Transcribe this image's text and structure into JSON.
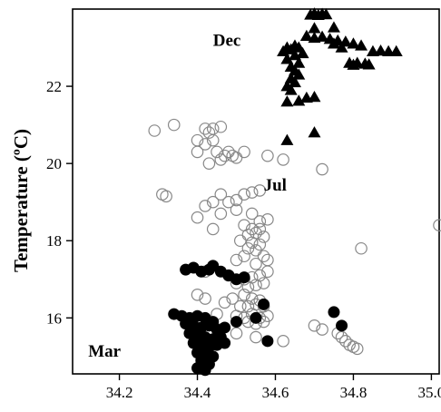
{
  "chart_data": {
    "type": "scatter",
    "title": "",
    "xlabel": "",
    "ylabel": "Temperature (ºC)",
    "xlim": [
      34.08,
      35.02
    ],
    "ylim": [
      14.55,
      24.0
    ],
    "xticks": [
      "34.2",
      "34.4",
      "34.6",
      "34.8",
      "35.0"
    ],
    "xtick_values": [
      34.2,
      34.4,
      34.6,
      34.8,
      35.0
    ],
    "yticks": [
      "16",
      "18",
      "20",
      "22"
    ],
    "ytick_values": [
      16,
      18,
      20,
      22
    ],
    "grid": false,
    "legend": "none",
    "annotations": [
      {
        "text": "Dec",
        "x": 34.44,
        "y": 23.05
      },
      {
        "text": "Jul",
        "x": 34.57,
        "y": 19.3
      },
      {
        "text": "Mar",
        "x": 34.12,
        "y": 15.0
      }
    ],
    "series": [
      {
        "marker": "triangle",
        "color": "#000000",
        "points": [
          [
            34.69,
            23.85
          ],
          [
            34.7,
            23.88
          ],
          [
            34.72,
            23.87
          ],
          [
            34.73,
            23.86
          ],
          [
            34.71,
            23.84
          ],
          [
            34.7,
            23.5
          ],
          [
            34.75,
            23.52
          ],
          [
            34.68,
            23.3
          ],
          [
            34.7,
            23.25
          ],
          [
            34.72,
            23.28
          ],
          [
            34.74,
            23.22
          ],
          [
            34.76,
            23.18
          ],
          [
            34.78,
            23.15
          ],
          [
            34.8,
            23.1
          ],
          [
            34.82,
            23.05
          ],
          [
            34.75,
            23.1
          ],
          [
            34.77,
            23.0
          ],
          [
            34.63,
            23.0
          ],
          [
            34.65,
            23.05
          ],
          [
            34.66,
            23.0
          ],
          [
            34.64,
            22.95
          ],
          [
            34.62,
            22.9
          ],
          [
            34.67,
            22.85
          ],
          [
            34.65,
            22.8
          ],
          [
            34.63,
            22.7
          ],
          [
            34.66,
            22.6
          ],
          [
            34.64,
            22.5
          ],
          [
            34.65,
            22.4
          ],
          [
            34.66,
            22.3
          ],
          [
            34.64,
            22.2
          ],
          [
            34.65,
            22.1
          ],
          [
            34.63,
            22.0
          ],
          [
            34.64,
            21.9
          ],
          [
            34.85,
            22.9
          ],
          [
            34.87,
            22.92
          ],
          [
            34.89,
            22.9
          ],
          [
            34.91,
            22.9
          ],
          [
            34.79,
            22.6
          ],
          [
            34.81,
            22.6
          ],
          [
            34.83,
            22.58
          ],
          [
            34.84,
            22.56
          ],
          [
            34.8,
            22.55
          ],
          [
            34.63,
            21.6
          ],
          [
            34.66,
            21.62
          ],
          [
            34.68,
            21.7
          ],
          [
            34.7,
            21.72
          ],
          [
            34.63,
            20.6
          ],
          [
            34.7,
            20.8
          ]
        ]
      },
      {
        "marker": "open-circle",
        "color": "#888888",
        "points": [
          [
            34.29,
            20.85
          ],
          [
            34.34,
            21.0
          ],
          [
            34.42,
            20.9
          ],
          [
            34.44,
            20.9
          ],
          [
            34.46,
            20.95
          ],
          [
            34.43,
            20.8
          ],
          [
            34.4,
            20.6
          ],
          [
            34.42,
            20.5
          ],
          [
            34.44,
            20.6
          ],
          [
            34.4,
            20.3
          ],
          [
            34.45,
            20.3
          ],
          [
            34.47,
            20.2
          ],
          [
            34.48,
            20.3
          ],
          [
            34.49,
            20.2
          ],
          [
            34.5,
            20.15
          ],
          [
            34.46,
            20.1
          ],
          [
            34.43,
            20.0
          ],
          [
            34.52,
            20.3
          ],
          [
            34.58,
            20.2
          ],
          [
            34.62,
            20.1
          ],
          [
            34.72,
            19.85
          ],
          [
            34.31,
            19.2
          ],
          [
            34.32,
            19.15
          ],
          [
            34.46,
            19.2
          ],
          [
            34.48,
            19.0
          ],
          [
            34.5,
            19.05
          ],
          [
            34.52,
            19.2
          ],
          [
            34.54,
            19.25
          ],
          [
            34.56,
            19.3
          ],
          [
            34.42,
            18.9
          ],
          [
            34.44,
            19.0
          ],
          [
            34.4,
            18.6
          ],
          [
            34.46,
            18.7
          ],
          [
            34.5,
            18.8
          ],
          [
            34.54,
            18.7
          ],
          [
            34.56,
            18.5
          ],
          [
            34.58,
            18.55
          ],
          [
            34.44,
            18.3
          ],
          [
            34.52,
            18.4
          ],
          [
            34.54,
            18.3
          ],
          [
            34.56,
            18.3
          ],
          [
            34.53,
            18.15
          ],
          [
            34.55,
            18.2
          ],
          [
            34.57,
            18.1
          ],
          [
            34.51,
            18.0
          ],
          [
            34.54,
            17.95
          ],
          [
            34.56,
            17.9
          ],
          [
            34.53,
            17.8
          ],
          [
            34.55,
            17.75
          ],
          [
            34.52,
            17.6
          ],
          [
            34.57,
            17.6
          ],
          [
            34.5,
            17.5
          ],
          [
            34.55,
            17.4
          ],
          [
            34.58,
            17.5
          ],
          [
            34.42,
            17.2
          ],
          [
            34.48,
            17.1
          ],
          [
            34.52,
            17.0
          ],
          [
            34.54,
            17.05
          ],
          [
            34.56,
            17.1
          ],
          [
            34.58,
            17.2
          ],
          [
            34.5,
            16.9
          ],
          [
            34.53,
            16.8
          ],
          [
            34.55,
            16.85
          ],
          [
            34.57,
            16.9
          ],
          [
            34.52,
            16.6
          ],
          [
            34.54,
            16.5
          ],
          [
            34.56,
            16.45
          ],
          [
            34.4,
            16.6
          ],
          [
            34.42,
            16.5
          ],
          [
            34.47,
            16.4
          ],
          [
            34.49,
            16.5
          ],
          [
            34.51,
            16.3
          ],
          [
            34.53,
            16.3
          ],
          [
            34.55,
            16.35
          ],
          [
            34.57,
            16.3
          ],
          [
            34.45,
            16.1
          ],
          [
            34.5,
            16.05
          ],
          [
            34.52,
            16.0
          ],
          [
            34.54,
            16.1
          ],
          [
            34.56,
            16.0
          ],
          [
            34.58,
            16.05
          ],
          [
            34.53,
            15.9
          ],
          [
            34.55,
            15.85
          ],
          [
            34.57,
            15.9
          ],
          [
            34.46,
            15.7
          ],
          [
            34.5,
            15.6
          ],
          [
            34.55,
            15.5
          ],
          [
            34.62,
            15.4
          ],
          [
            34.7,
            15.8
          ],
          [
            34.72,
            15.7
          ],
          [
            34.76,
            15.6
          ],
          [
            34.77,
            15.5
          ],
          [
            34.78,
            15.4
          ],
          [
            34.79,
            15.3
          ],
          [
            34.8,
            15.25
          ],
          [
            34.81,
            15.2
          ],
          [
            34.82,
            17.8
          ],
          [
            35.02,
            18.4
          ]
        ]
      },
      {
        "marker": "filled-circle",
        "color": "#000000",
        "points": [
          [
            34.37,
            17.25
          ],
          [
            34.39,
            17.3
          ],
          [
            34.41,
            17.2
          ],
          [
            34.43,
            17.25
          ],
          [
            34.44,
            17.35
          ],
          [
            34.46,
            17.2
          ],
          [
            34.48,
            17.1
          ],
          [
            34.5,
            17.0
          ],
          [
            34.52,
            17.05
          ],
          [
            34.34,
            16.1
          ],
          [
            34.36,
            16.05
          ],
          [
            34.38,
            16.0
          ],
          [
            34.4,
            16.05
          ],
          [
            34.42,
            16.0
          ],
          [
            34.44,
            15.9
          ],
          [
            34.37,
            15.85
          ],
          [
            34.39,
            15.8
          ],
          [
            34.41,
            15.75
          ],
          [
            34.43,
            15.8
          ],
          [
            34.45,
            15.7
          ],
          [
            34.47,
            15.75
          ],
          [
            34.38,
            15.6
          ],
          [
            34.4,
            15.55
          ],
          [
            34.42,
            15.5
          ],
          [
            34.44,
            15.45
          ],
          [
            34.46,
            15.5
          ],
          [
            34.39,
            15.35
          ],
          [
            34.41,
            15.3
          ],
          [
            34.43,
            15.25
          ],
          [
            34.45,
            15.3
          ],
          [
            34.47,
            15.35
          ],
          [
            34.4,
            15.1
          ],
          [
            34.42,
            15.05
          ],
          [
            34.44,
            15.0
          ],
          [
            34.41,
            14.9
          ],
          [
            34.43,
            14.8
          ],
          [
            34.4,
            14.7
          ],
          [
            34.42,
            14.65
          ],
          [
            34.5,
            15.9
          ],
          [
            34.55,
            16.0
          ],
          [
            34.57,
            16.35
          ],
          [
            34.58,
            15.4
          ],
          [
            34.75,
            16.15
          ],
          [
            34.77,
            15.8
          ]
        ]
      }
    ]
  }
}
